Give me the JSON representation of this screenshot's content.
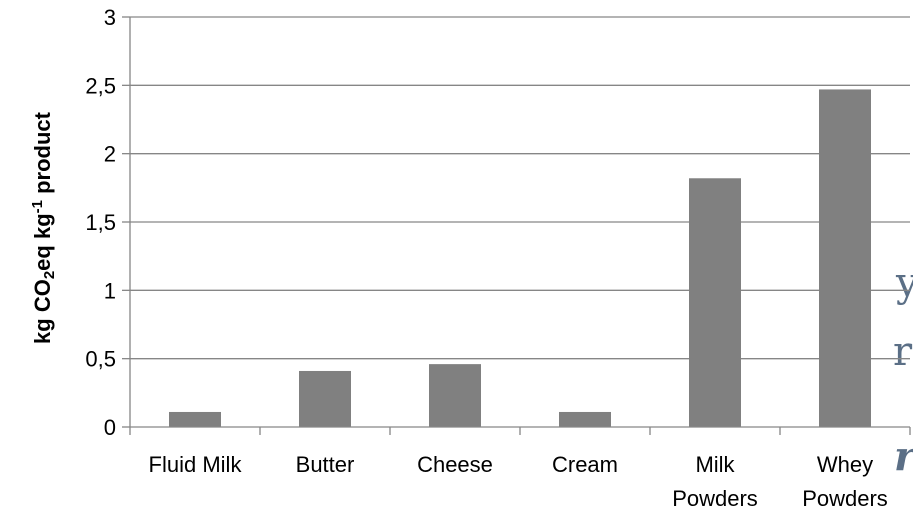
{
  "chart_data": {
    "type": "bar",
    "categories": [
      [
        "Fluid Milk"
      ],
      [
        "Butter"
      ],
      [
        "Cheese"
      ],
      [
        "Cream"
      ],
      [
        "Milk",
        "Powders"
      ],
      [
        "Whey",
        "Powders"
      ]
    ],
    "values": [
      0.11,
      0.41,
      0.46,
      0.11,
      1.82,
      2.47
    ],
    "ylabel": {
      "part1": "kg CO",
      "sub": "2",
      "part2": "eq kg",
      "sup": "-1",
      "part3": " product"
    },
    "ylim": [
      0,
      3
    ],
    "yticks": [
      0,
      0.5,
      1,
      1.5,
      2,
      2.5,
      3
    ],
    "ytick_labels": [
      "0",
      "0,5",
      "1",
      "1,5",
      "2",
      "2,5",
      "3"
    ],
    "grid": true,
    "legend": "none",
    "colors": {
      "bar": "#808080",
      "grid": "#868686",
      "axis": "#868686",
      "text": "#000000"
    }
  }
}
